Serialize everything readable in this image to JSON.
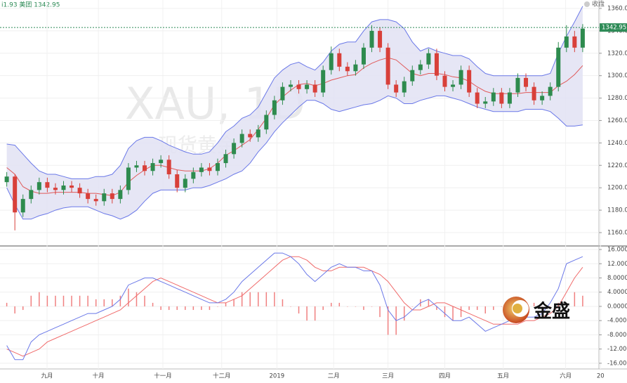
{
  "brand": "金盛",
  "chart_data": [
    {
      "type": "candlestick",
      "title": "XAU, 1D",
      "subtitle": "现货黄金",
      "header": "i1.93 美团 1342.95",
      "legend_label": "收盘",
      "last_price": 1342.95,
      "last_price_color": "#2e8b57",
      "up_color": "#2e8b4e",
      "down_color": "#d8403a",
      "band_color": "#6a78e8",
      "band_fill": "#e2e2f3",
      "mid_color": "#e05a5a",
      "grid": true,
      "xlim": [
        -0.4,
        73
      ],
      "xticks": [
        {
          "value": 4.97,
          "label": "九月"
        },
        {
          "value": 11.3,
          "label": "十月"
        },
        {
          "value": 19.25,
          "label": "十一月"
        },
        {
          "value": 26.5,
          "label": "十二月"
        },
        {
          "value": 33.3,
          "label": "2019"
        },
        {
          "value": 40.3,
          "label": "二月"
        },
        {
          "value": 47.0,
          "label": "三月"
        },
        {
          "value": 54.0,
          "label": "四月"
        },
        {
          "value": 61.2,
          "label": "五月"
        },
        {
          "value": 68.9,
          "label": "六月"
        },
        {
          "value": 73.2,
          "label": "20"
        }
      ],
      "ylim": [
        1148.7,
        1367.5
      ],
      "yticks": [
        {
          "value": 1160,
          "label": "1160.00"
        },
        {
          "value": 1180,
          "label": "1180.00"
        },
        {
          "value": 1200,
          "label": "1200.00"
        },
        {
          "value": 1220,
          "label": "1220.00"
        },
        {
          "value": 1240,
          "label": "1240.00"
        },
        {
          "value": 1260,
          "label": "1260.00"
        },
        {
          "value": 1280,
          "label": "1280.00"
        },
        {
          "value": 1300,
          "label": "1300.00"
        },
        {
          "value": 1320,
          "label": "1320.00"
        },
        {
          "value": 1340,
          "label": "1340.00"
        },
        {
          "value": 1360,
          "label": "1360.00"
        }
      ],
      "open": [
        1205,
        1210,
        1178,
        1190,
        1198,
        1205,
        1200,
        1198,
        1202,
        1200,
        1195,
        1190,
        1188,
        1195,
        1190,
        1198,
        1218,
        1220,
        1215,
        1222,
        1225,
        1212,
        1200,
        1208,
        1214,
        1218,
        1215,
        1222,
        1230,
        1240,
        1248,
        1245,
        1252,
        1265,
        1278,
        1290,
        1292,
        1288,
        1292,
        1285,
        1305,
        1320,
        1308,
        1304,
        1310,
        1325,
        1340,
        1325,
        1292,
        1285,
        1295,
        1305,
        1310,
        1320,
        1300,
        1290,
        1292,
        1305,
        1285,
        1275,
        1277,
        1285,
        1275,
        1285,
        1298,
        1290,
        1278,
        1282,
        1290,
        1325,
        1335,
        1325
      ],
      "high": [
        1214,
        1212,
        1194,
        1202,
        1209,
        1209,
        1204,
        1206,
        1206,
        1204,
        1199,
        1194,
        1199,
        1199,
        1202,
        1222,
        1224,
        1224,
        1226,
        1229,
        1229,
        1216,
        1212,
        1218,
        1222,
        1222,
        1226,
        1234,
        1244,
        1252,
        1252,
        1256,
        1269,
        1282,
        1294,
        1296,
        1296,
        1296,
        1296,
        1309,
        1326,
        1324,
        1312,
        1314,
        1329,
        1345,
        1343,
        1329,
        1296,
        1299,
        1309,
        1314,
        1324,
        1324,
        1304,
        1296,
        1309,
        1309,
        1289,
        1281,
        1289,
        1289,
        1289,
        1302,
        1302,
        1294,
        1286,
        1294,
        1330,
        1345,
        1340,
        1346
      ],
      "low": [
        1201,
        1162,
        1174,
        1186,
        1194,
        1196,
        1194,
        1194,
        1196,
        1191,
        1186,
        1184,
        1184,
        1186,
        1186,
        1194,
        1214,
        1211,
        1211,
        1218,
        1208,
        1196,
        1196,
        1204,
        1210,
        1211,
        1211,
        1218,
        1226,
        1236,
        1241,
        1241,
        1248,
        1261,
        1274,
        1286,
        1284,
        1284,
        1281,
        1281,
        1301,
        1304,
        1300,
        1300,
        1306,
        1321,
        1321,
        1288,
        1281,
        1281,
        1291,
        1301,
        1306,
        1296,
        1286,
        1286,
        1288,
        1281,
        1271,
        1271,
        1273,
        1271,
        1271,
        1281,
        1286,
        1274,
        1274,
        1278,
        1286,
        1321,
        1321,
        1321
      ],
      "close": [
        1210,
        1178,
        1190,
        1198,
        1205,
        1200,
        1198,
        1202,
        1200,
        1195,
        1190,
        1188,
        1195,
        1190,
        1198,
        1218,
        1220,
        1215,
        1222,
        1225,
        1212,
        1200,
        1208,
        1214,
        1218,
        1215,
        1222,
        1230,
        1240,
        1248,
        1245,
        1252,
        1265,
        1278,
        1290,
        1292,
        1288,
        1292,
        1285,
        1305,
        1320,
        1308,
        1304,
        1310,
        1325,
        1340,
        1325,
        1292,
        1285,
        1295,
        1305,
        1310,
        1320,
        1300,
        1290,
        1292,
        1305,
        1285,
        1275,
        1277,
        1285,
        1275,
        1285,
        1298,
        1290,
        1278,
        1282,
        1290,
        1325,
        1335,
        1325,
        1342
      ],
      "upper": [
        1239,
        1238,
        1230,
        1222,
        1215,
        1212,
        1212,
        1210,
        1208,
        1208,
        1208,
        1210,
        1210,
        1212,
        1220,
        1235,
        1242,
        1245,
        1245,
        1242,
        1238,
        1235,
        1232,
        1230,
        1230,
        1232,
        1240,
        1250,
        1255,
        1262,
        1265,
        1272,
        1285,
        1298,
        1305,
        1310,
        1312,
        1308,
        1305,
        1312,
        1322,
        1328,
        1330,
        1330,
        1340,
        1348,
        1350,
        1350,
        1348,
        1342,
        1330,
        1322,
        1325,
        1322,
        1320,
        1318,
        1318,
        1315,
        1308,
        1302,
        1300,
        1300,
        1300,
        1300,
        1300,
        1300,
        1300,
        1302,
        1320,
        1335,
        1348,
        1362
      ],
      "middle": [
        1218,
        1212,
        1201,
        1197,
        1195,
        1195,
        1196,
        1196,
        1196,
        1196,
        1195,
        1195,
        1194,
        1193,
        1196,
        1205,
        1211,
        1216,
        1220,
        1220,
        1218,
        1216,
        1215,
        1215,
        1215,
        1217,
        1222,
        1229,
        1233,
        1238,
        1243,
        1252,
        1262,
        1274,
        1281,
        1287,
        1292,
        1293,
        1291,
        1293,
        1296,
        1298,
        1300,
        1301,
        1307,
        1311,
        1314,
        1316,
        1314,
        1308,
        1302,
        1300,
        1302,
        1302,
        1301,
        1299,
        1298,
        1295,
        1290,
        1286,
        1284,
        1284,
        1284,
        1284,
        1285,
        1285,
        1285,
        1285,
        1291,
        1295,
        1301,
        1309
      ],
      "lower": [
        1200,
        1185,
        1172,
        1172,
        1175,
        1177,
        1180,
        1182,
        1183,
        1183,
        1183,
        1180,
        1177,
        1175,
        1172,
        1175,
        1180,
        1188,
        1195,
        1198,
        1198,
        1198,
        1198,
        1200,
        1200,
        1202,
        1205,
        1208,
        1212,
        1215,
        1222,
        1232,
        1240,
        1250,
        1258,
        1265,
        1272,
        1278,
        1278,
        1275,
        1270,
        1268,
        1270,
        1272,
        1274,
        1275,
        1278,
        1282,
        1280,
        1275,
        1275,
        1278,
        1280,
        1282,
        1282,
        1280,
        1278,
        1275,
        1272,
        1270,
        1268,
        1268,
        1268,
        1268,
        1270,
        1270,
        1270,
        1268,
        1262,
        1255,
        1255,
        1256
      ]
    },
    {
      "type": "macd",
      "grid": true,
      "dif_color": "#6a78e8",
      "dea_color": "#f06a6a",
      "hist_color": "#f08080",
      "xlim": [
        -0.4,
        73
      ],
      "ylim": [
        -17.6,
        16.8
      ],
      "yticks": [
        {
          "value": 16,
          "label": "16.0000"
        },
        {
          "value": 12,
          "label": "12.0000"
        },
        {
          "value": 8,
          "label": "8.0000"
        },
        {
          "value": 4,
          "label": "4.0000"
        },
        {
          "value": 0,
          "label": "0.0000"
        },
        {
          "value": -4,
          "label": "-4.0000"
        },
        {
          "value": -8,
          "label": "-8.0000"
        },
        {
          "value": -12,
          "label": "-12.0000"
        },
        {
          "value": -16,
          "label": "-16.0000"
        }
      ],
      "dif": [
        -11,
        -15,
        -15,
        -10,
        -8,
        -7,
        -6,
        -5,
        -4,
        -3,
        -2,
        -2,
        -1,
        0,
        2,
        6,
        7,
        8,
        8,
        7,
        6,
        5,
        4,
        3,
        2,
        1,
        1,
        2,
        4,
        7,
        9,
        11,
        13,
        15,
        15,
        14,
        12,
        9,
        7,
        9,
        11,
        12,
        11,
        11,
        10,
        10,
        6,
        -1,
        -4,
        -3,
        -1,
        1,
        2,
        0,
        -2,
        -4,
        -4,
        -3,
        -5,
        -7,
        -6,
        -5,
        -4,
        -3,
        -3,
        -3,
        -2,
        1,
        5,
        12,
        13,
        14
      ],
      "dea": [
        -12,
        -13,
        -14,
        -13,
        -12,
        -10,
        -9,
        -8,
        -7,
        -6,
        -5,
        -4,
        -3,
        -2,
        -1,
        1,
        3,
        5,
        7,
        8,
        7,
        6,
        5,
        4,
        3,
        2,
        1,
        1,
        2,
        3,
        5,
        7,
        9,
        11,
        13,
        14,
        14,
        13,
        11,
        10,
        10,
        11,
        11,
        11,
        11,
        10,
        9,
        7,
        4,
        1,
        -1,
        -1,
        0,
        1,
        1,
        0,
        -1,
        -2,
        -3,
        -4,
        -5,
        -5,
        -5,
        -5,
        -4,
        -4,
        -3,
        -2,
        0,
        4,
        8,
        11
      ],
      "histogram": [
        1,
        -2,
        -1,
        3,
        4,
        3,
        3,
        3,
        3,
        3,
        3,
        2,
        2,
        2,
        3,
        5,
        4,
        3,
        1,
        -1,
        -1,
        -1,
        -1,
        -1,
        -1,
        -1,
        0,
        1,
        2,
        4,
        4,
        4,
        4,
        4,
        2,
        0,
        -2,
        -4,
        -4,
        -1,
        1,
        1,
        0,
        0,
        -1,
        0,
        -3,
        -8,
        -8,
        -4,
        0,
        2,
        2,
        -1,
        -3,
        -4,
        -3,
        -1,
        -1,
        -2,
        -1,
        0,
        1,
        2,
        1,
        1,
        0,
        0,
        1,
        1,
        4,
        3
      ]
    }
  ]
}
